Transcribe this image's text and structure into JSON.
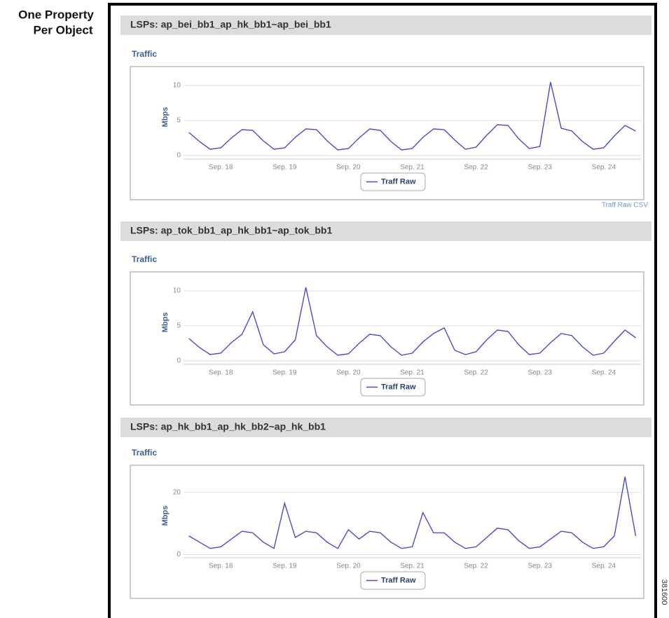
{
  "side_label": [
    "One Property",
    "Per Object"
  ],
  "csv_link": "Traff Raw CSV",
  "figure_id": "381600",
  "chart_data": [
    {
      "type": "line",
      "title": "LSPs: ap_bei_bb1_ap_hk_bb1~ap_bei_bb1",
      "subtitle": "Traffic",
      "y_label": "Mbps",
      "categories": [
        null,
        null,
        null,
        "Sep. 18",
        null,
        null,
        null,
        null,
        null,
        "Sep. 19",
        null,
        null,
        null,
        null,
        null,
        "Sep. 20",
        null,
        null,
        null,
        null,
        null,
        "Sep. 21",
        null,
        null,
        null,
        null,
        null,
        "Sep. 22",
        null,
        null,
        null,
        null,
        null,
        "Sep. 23",
        null,
        null,
        null,
        null,
        null,
        "Sep. 24",
        null,
        null,
        null
      ],
      "series": [
        {
          "name": "Traff Raw",
          "color": "#4a4ad0",
          "values": [
            3.3,
            2.0,
            0.9,
            1.1,
            2.5,
            3.7,
            3.6,
            2.1,
            0.9,
            1.1,
            2.6,
            3.8,
            3.7,
            2.1,
            0.8,
            1.0,
            2.5,
            3.8,
            3.6,
            2.0,
            0.8,
            1.0,
            2.6,
            3.8,
            3.7,
            2.2,
            0.9,
            1.2,
            2.9,
            4.4,
            4.3,
            2.4,
            1.0,
            1.3,
            10.5,
            3.9,
            3.5,
            2.0,
            0.9,
            1.1,
            2.8,
            4.3,
            3.5
          ]
        }
      ],
      "ylim": [
        -0.5,
        11.5
      ],
      "yticks": [
        0,
        5,
        10
      ],
      "grid": true
    },
    {
      "type": "line",
      "title": "LSPs: ap_tok_bb1_ap_hk_bb1~ap_tok_bb1",
      "subtitle": "Traffic",
      "y_label": "Mbps",
      "categories": [
        null,
        null,
        null,
        "Sep. 18",
        null,
        null,
        null,
        null,
        null,
        "Sep. 19",
        null,
        null,
        null,
        null,
        null,
        "Sep. 20",
        null,
        null,
        null,
        null,
        null,
        "Sep. 21",
        null,
        null,
        null,
        null,
        null,
        "Sep. 22",
        null,
        null,
        null,
        null,
        null,
        "Sep. 23",
        null,
        null,
        null,
        null,
        null,
        "Sep. 24",
        null,
        null,
        null
      ],
      "series": [
        {
          "name": "Traff Raw",
          "color": "#4a4ad0",
          "values": [
            3.2,
            1.9,
            0.9,
            1.1,
            2.6,
            3.8,
            7.0,
            2.3,
            1.0,
            1.3,
            3.0,
            10.5,
            3.6,
            2.0,
            0.8,
            1.0,
            2.5,
            3.8,
            3.6,
            2.0,
            0.8,
            1.1,
            2.7,
            3.9,
            4.7,
            1.5,
            0.9,
            1.3,
            3.0,
            4.4,
            4.2,
            2.3,
            0.9,
            1.1,
            2.6,
            3.9,
            3.6,
            2.0,
            0.8,
            1.1,
            2.8,
            4.4,
            3.3
          ]
        }
      ],
      "ylim": [
        -0.5,
        11.5
      ],
      "yticks": [
        0,
        5,
        10
      ],
      "grid": true
    },
    {
      "type": "line",
      "title": "LSPs: ap_hk_bb1_ap_hk_bb2~ap_hk_bb1",
      "subtitle": "Traffic",
      "y_label": "Mbps",
      "categories": [
        null,
        null,
        null,
        "Sep. 18",
        null,
        null,
        null,
        null,
        null,
        "Sep. 19",
        null,
        null,
        null,
        null,
        null,
        "Sep. 20",
        null,
        null,
        null,
        null,
        null,
        "Sep. 21",
        null,
        null,
        null,
        null,
        null,
        "Sep. 22",
        null,
        null,
        null,
        null,
        null,
        "Sep. 23",
        null,
        null,
        null,
        null,
        null,
        "Sep. 24",
        null,
        null,
        null
      ],
      "series": [
        {
          "name": "Traff Raw",
          "color": "#4a4ad0",
          "values": [
            6.0,
            4.0,
            2.0,
            2.5,
            5.0,
            7.5,
            7.0,
            4.0,
            2.0,
            16.5,
            5.5,
            7.5,
            7.0,
            4.0,
            2.0,
            8.0,
            5.0,
            7.5,
            7.0,
            4.0,
            2.0,
            2.5,
            13.5,
            7.0,
            7.0,
            4.0,
            2.0,
            2.5,
            5.5,
            8.5,
            8.0,
            4.5,
            2.0,
            2.5,
            5.0,
            7.5,
            7.0,
            4.0,
            2.0,
            2.5,
            6.0,
            25.0,
            6.0
          ]
        }
      ],
      "ylim": [
        -1,
        26
      ],
      "yticks": [
        0,
        20
      ],
      "grid": true
    }
  ]
}
